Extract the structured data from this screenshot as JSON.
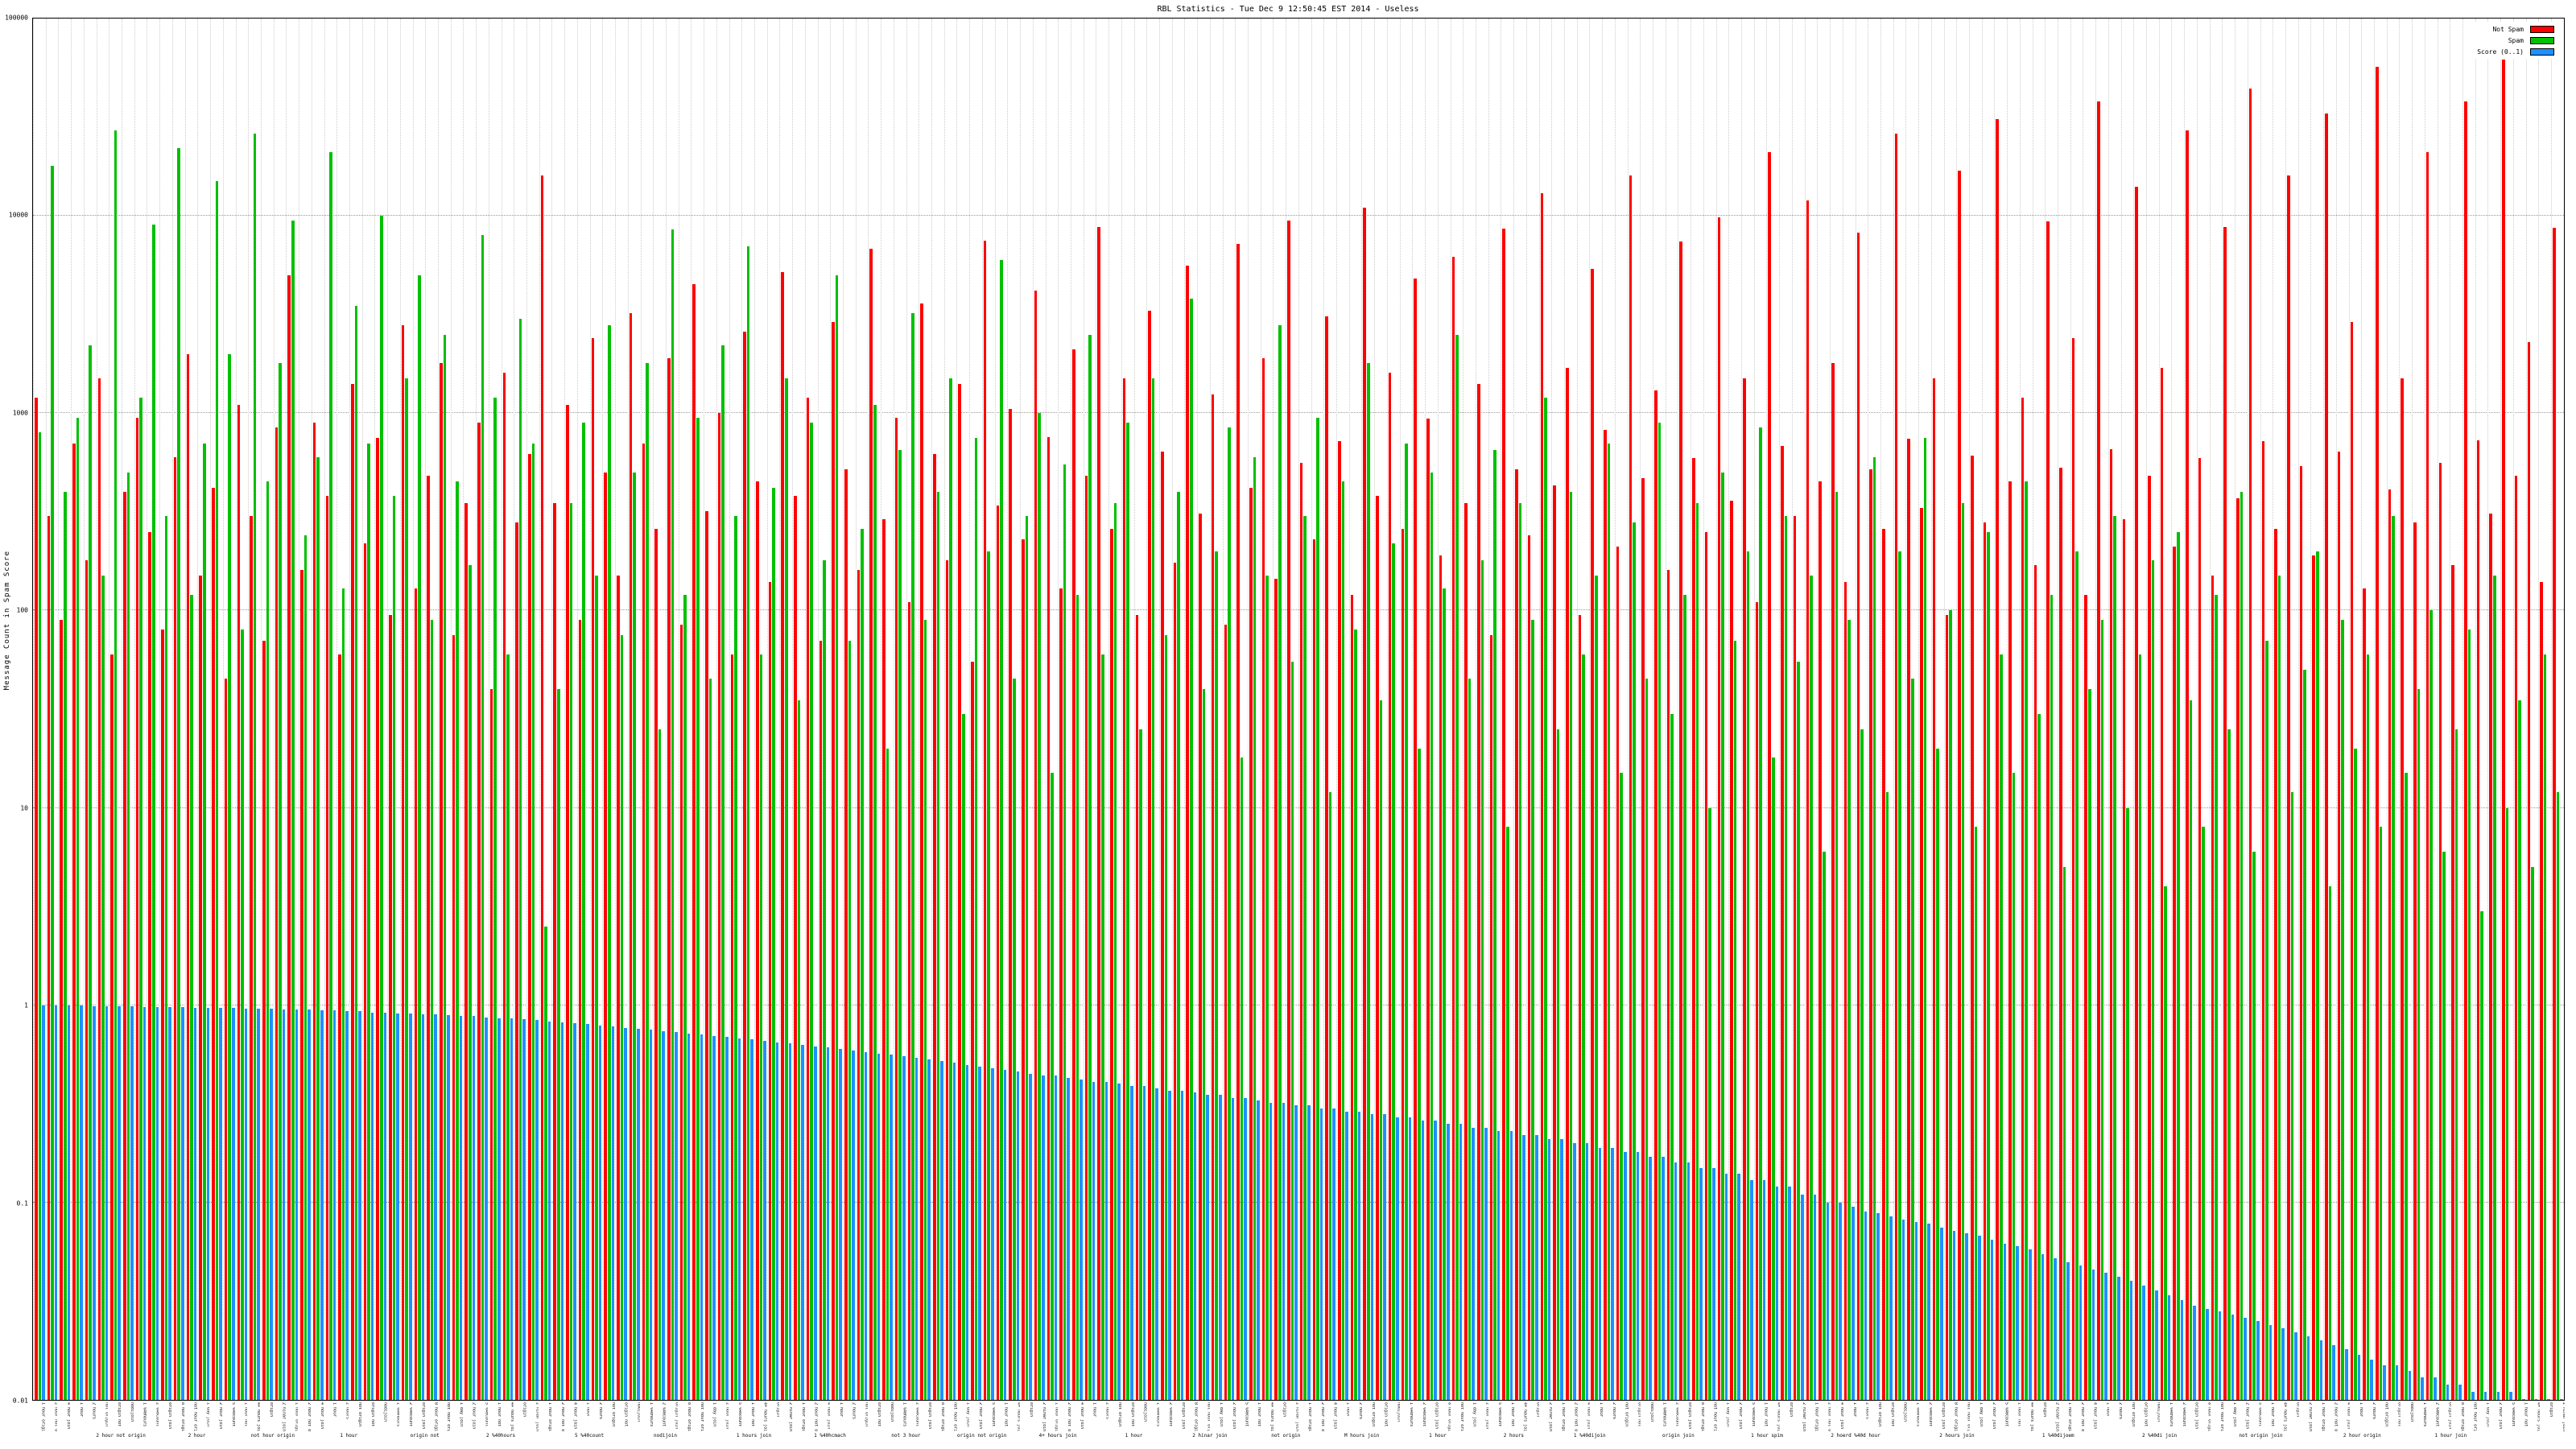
{
  "chart_data": {
    "type": "bar",
    "title": "RBL Statistics - Tue Dec  9 12:50:45 EST 2014 - Useless",
    "xlabel": "",
    "ylabel": "Message Count in Spam Score",
    "y_scale": "log",
    "ylim": [
      0.01,
      100000
    ],
    "grid": true,
    "legend_position": "top-right",
    "y_ticks": [
      {
        "v": 100000,
        "label": "100000"
      },
      {
        "v": 10000,
        "label": "10000"
      },
      {
        "v": 1000,
        "label": "1000"
      },
      {
        "v": 100,
        "label": "100"
      },
      {
        "v": 10,
        "label": "10"
      },
      {
        "v": 1,
        "label": "1"
      },
      {
        "v": 0.1,
        "label": "0.1"
      },
      {
        "v": 0.01,
        "label": "0.01"
      }
    ],
    "series": [
      {
        "name": "Not Spam",
        "key": "not-spam",
        "color": "#ff0000",
        "values": [
          1200,
          300,
          90,
          700,
          180,
          1500,
          60,
          400,
          950,
          250,
          80,
          600,
          2000,
          150,
          420,
          45,
          1100,
          300,
          70,
          850,
          5000,
          160,
          900,
          380,
          60,
          1400,
          220,
          750,
          95,
          2800,
          130,
          480,
          1800,
          75,
          350,
          900,
          40,
          1600,
          280,
          620,
          16000,
          350,
          1100,
          90,
          2400,
          500,
          150,
          3200,
          700,
          260,
          1900,
          85,
          4500,
          320,
          1000,
          60,
          2600,
          450,
          140,
          5200,
          380,
          1200,
          70,
          2900,
          520,
          160,
          6800,
          290,
          950,
          110,
          3600,
          620,
          180,
          1400,
          55,
          7500,
          340,
          1050,
          230,
          4200,
          760,
          130,
          2100,
          480,
          8800,
          260,
          1500,
          95,
          3300,
          640,
          175,
          5600,
          310,
          1250,
          85,
          7200,
          420,
          1900,
          145,
          9500,
          560,
          230,
          3100,
          720,
          120,
          11000,
          380,
          1600,
          260,
          4800,
          940,
          190,
          6200,
          350,
          1400,
          75,
          8600,
          520,
          240,
          13000,
          430,
          1700,
          95,
          5400,
          820,
          210,
          16000,
          470,
          1300,
          160,
          7400,
          590,
          250,
          9800,
          360,
          1500,
          110,
          21000,
          680,
          300,
          12000,
          450,
          1800,
          140,
          8200,
          520,
          260,
          26000,
          740,
          330,
          1500,
          95,
          17000,
          610,
          280,
          31000,
          450,
          1200,
          170,
          9400,
          530,
          2400,
          120,
          38000,
          660,
          290,
          14000,
          480,
          1700,
          210,
          27000,
          590,
          150,
          8800,
          370,
          44000,
          720,
          260,
          16000,
          540,
          190,
          33000,
          640,
          2900,
          130,
          57000,
          410,
          1500,
          280,
          21000,
          560,
          170,
          38000,
          730,
          310,
          62000,
          480,
          2300,
          140,
          8700
        ]
      },
      {
        "name": "Spam",
        "key": "spam",
        "color": "#00c000",
        "values": [
          800,
          18000,
          400,
          950,
          2200,
          150,
          27000,
          500,
          1200,
          9000,
          300,
          22000,
          120,
          700,
          15000,
          2000,
          80,
          26000,
          450,
          1800,
          9500,
          240,
          600,
          21000,
          130,
          3500,
          700,
          10000,
          380,
          1500,
          5000,
          90,
          2500,
          450,
          170,
          8000,
          1200,
          60,
          3000,
          700,
          2.5,
          40,
          350,
          900,
          150,
          2800,
          75,
          500,
          1800,
          25,
          8500,
          120,
          950,
          45,
          2200,
          300,
          7000,
          60,
          420,
          1500,
          35,
          900,
          180,
          5000,
          70,
          260,
          1100,
          20,
          650,
          3200,
          90,
          400,
          1500,
          30,
          750,
          200,
          6000,
          45,
          300,
          1000,
          15,
          550,
          120,
          2500,
          60,
          350,
          900,
          25,
          1500,
          75,
          400,
          3800,
          40,
          200,
          850,
          18,
          600,
          150,
          2800,
          55,
          300,
          950,
          12,
          450,
          80,
          1800,
          35,
          220,
          700,
          20,
          500,
          130,
          2500,
          45,
          180,
          650,
          8,
          350,
          90,
          1200,
          25,
          400,
          60,
          150,
          700,
          15,
          280,
          45,
          900,
          30,
          120,
          350,
          10,
          500,
          70,
          200,
          850,
          18,
          300,
          55,
          150,
          6,
          400,
          90,
          25,
          600,
          12,
          200,
          45,
          750,
          20,
          100,
          350,
          8,
          250,
          60,
          15,
          450,
          30,
          120,
          5,
          200,
          40,
          90,
          300,
          10,
          60,
          180,
          4,
          250,
          35,
          8,
          120,
          25,
          400,
          6,
          70,
          150,
          12,
          50,
          200,
          4,
          90,
          20,
          60,
          8,
          300,
          15,
          40,
          100,
          6,
          25,
          80,
          3,
          150,
          10,
          35,
          5,
          60,
          12
        ]
      },
      {
        "name": "Score (0..1)",
        "key": "score",
        "color": "#1e90ff",
        "values": [
          1.0,
          1.0,
          1.0,
          1.0,
          0.99,
          0.99,
          0.99,
          0.99,
          0.98,
          0.98,
          0.98,
          0.98,
          0.97,
          0.97,
          0.97,
          0.97,
          0.96,
          0.96,
          0.96,
          0.95,
          0.95,
          0.95,
          0.94,
          0.94,
          0.93,
          0.93,
          0.92,
          0.92,
          0.91,
          0.91,
          0.9,
          0.9,
          0.89,
          0.88,
          0.88,
          0.87,
          0.86,
          0.86,
          0.85,
          0.84,
          0.83,
          0.82,
          0.81,
          0.8,
          0.79,
          0.78,
          0.77,
          0.76,
          0.75,
          0.74,
          0.73,
          0.72,
          0.71,
          0.7,
          0.69,
          0.68,
          0.67,
          0.66,
          0.65,
          0.64,
          0.63,
          0.62,
          0.61,
          0.6,
          0.59,
          0.58,
          0.57,
          0.56,
          0.55,
          0.54,
          0.53,
          0.52,
          0.51,
          0.5,
          0.49,
          0.48,
          0.47,
          0.46,
          0.45,
          0.44,
          0.44,
          0.43,
          0.42,
          0.41,
          0.41,
          0.4,
          0.39,
          0.39,
          0.38,
          0.37,
          0.37,
          0.36,
          0.35,
          0.35,
          0.34,
          0.34,
          0.33,
          0.32,
          0.32,
          0.31,
          0.31,
          0.3,
          0.3,
          0.29,
          0.29,
          0.28,
          0.28,
          0.27,
          0.27,
          0.26,
          0.26,
          0.25,
          0.25,
          0.24,
          0.24,
          0.23,
          0.23,
          0.22,
          0.22,
          0.21,
          0.21,
          0.2,
          0.2,
          0.19,
          0.19,
          0.18,
          0.18,
          0.17,
          0.17,
          0.16,
          0.16,
          0.15,
          0.15,
          0.14,
          0.14,
          0.13,
          0.13,
          0.12,
          0.12,
          0.11,
          0.11,
          0.1,
          0.1,
          0.095,
          0.09,
          0.088,
          0.085,
          0.082,
          0.08,
          0.078,
          0.075,
          0.072,
          0.07,
          0.068,
          0.065,
          0.062,
          0.06,
          0.058,
          0.055,
          0.052,
          0.05,
          0.048,
          0.046,
          0.044,
          0.042,
          0.04,
          0.038,
          0.036,
          0.034,
          0.032,
          0.03,
          0.029,
          0.028,
          0.027,
          0.026,
          0.025,
          0.024,
          0.023,
          0.022,
          0.021,
          0.02,
          0.019,
          0.018,
          0.017,
          0.016,
          0.015,
          0.015,
          0.014,
          0.013,
          0.013,
          0.012,
          0.012,
          0.011,
          0.011,
          0.011,
          0.011,
          0.01,
          0.01,
          0.01,
          0.01
        ]
      }
    ],
    "x_labels_pool": [
      "1 hour origin",
      "2 hour not origin",
      "4 hour join",
      "1 hour",
      "2 hours",
      "not origin",
      "origin not",
      "nodijoin",
      "1 %40hours",
      "2 %40count",
      "origin join",
      "8 hour origin",
      "not hour origin",
      "1 day join",
      "2 hour join",
      "5 %40count",
      "1 hour not",
      "4+ hours join",
      "origin",
      "2 hinar join"
    ],
    "x_annotations": [
      {
        "x": 3.5,
        "text": "2 hour not origin"
      },
      {
        "x": 6.5,
        "text": "2 hour"
      },
      {
        "x": 9.5,
        "text": "not hour origin"
      },
      {
        "x": 12.5,
        "text": "1 hour"
      },
      {
        "x": 15.5,
        "text": "origin not"
      },
      {
        "x": 18.5,
        "text": "2 %40hours"
      },
      {
        "x": 22,
        "text": "5 %40count"
      },
      {
        "x": 25,
        "text": "nodijoin"
      },
      {
        "x": 28.5,
        "text": "1 hours join"
      },
      {
        "x": 31.5,
        "text": "1 %40hcmach"
      },
      {
        "x": 34.5,
        "text": "not 3 hour"
      },
      {
        "x": 37.5,
        "text": "origin not origin"
      },
      {
        "x": 40.5,
        "text": "4+ hours join"
      },
      {
        "x": 43.5,
        "text": "1 hour"
      },
      {
        "x": 46.5,
        "text": "2 hinar join"
      },
      {
        "x": 49.5,
        "text": "not origin"
      },
      {
        "x": 52.5,
        "text": "M hours join"
      },
      {
        "x": 55.5,
        "text": "1 hour"
      },
      {
        "x": 58.5,
        "text": "2 hours"
      },
      {
        "x": 61.5,
        "text": "1 %40dijoin"
      },
      {
        "x": 65,
        "text": "origin join"
      },
      {
        "x": 68.5,
        "text": "1 hour spim"
      },
      {
        "x": 72,
        "text": "2 hoerd %40d hour"
      },
      {
        "x": 76,
        "text": "2 hours join"
      },
      {
        "x": 80,
        "text": "1 %40dijoem"
      },
      {
        "x": 84,
        "text": "2 %40di join"
      },
      {
        "x": 88,
        "text": "not origin join"
      },
      {
        "x": 92,
        "text": "2 hour origin"
      },
      {
        "x": 95.5,
        "text": "1 hour join"
      }
    ]
  }
}
